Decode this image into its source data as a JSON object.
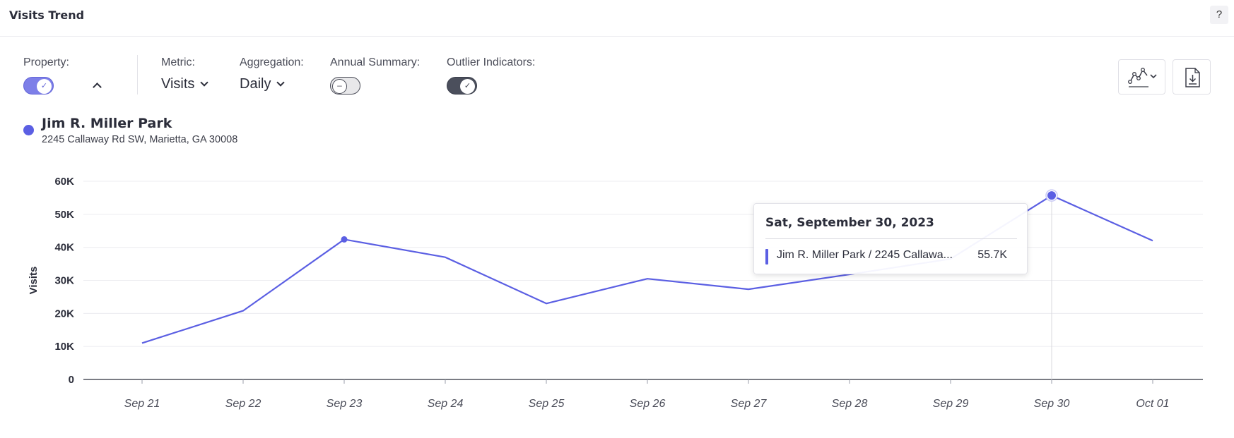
{
  "header": {
    "title": "Visits Trend",
    "help_label": "?"
  },
  "controls": {
    "property_label": "Property:",
    "metric_label": "Metric:",
    "metric_value": "Visits",
    "aggregation_label": "Aggregation:",
    "aggregation_value": "Daily",
    "annual_summary_label": "Annual Summary:",
    "annual_summary_knob": "–",
    "outlier_label": "Outlier Indicators:",
    "property_toggle_on": true,
    "annual_summary_on": false,
    "outlier_on": true,
    "check_glyph": "✓"
  },
  "legend": {
    "name": "Jim R. Miller Park",
    "address": "2245 Callaway Rd SW, Marietta, GA 30008",
    "color": "#5b5fe3"
  },
  "tooltip": {
    "date": "Sat, September 30, 2023",
    "label": "Jim R. Miller Park / 2245 Callawa...",
    "value": "55.7K"
  },
  "chart_data": {
    "type": "line",
    "ylabel": "Visits",
    "xlabel": "",
    "categories": [
      "Sep 21",
      "Sep 22",
      "Sep 23",
      "Sep 24",
      "Sep 25",
      "Sep 26",
      "Sep 27",
      "Sep 28",
      "Sep 29",
      "Sep 30",
      "Oct 01"
    ],
    "series": [
      {
        "values": [
          11000,
          20800,
          42400,
          37000,
          23000,
          30500,
          27300,
          31800,
          36500,
          55700,
          42000
        ],
        "color": "#5b5fe3"
      }
    ],
    "ylim": [
      0,
      60000
    ],
    "yticks": [
      0,
      10000,
      20000,
      30000,
      40000,
      50000,
      60000
    ],
    "ytick_labels": [
      "0",
      "10K",
      "20K",
      "30K",
      "40K",
      "50K",
      "60K"
    ],
    "highlight_index": 9,
    "outlier_index": 2,
    "grid": true
  }
}
